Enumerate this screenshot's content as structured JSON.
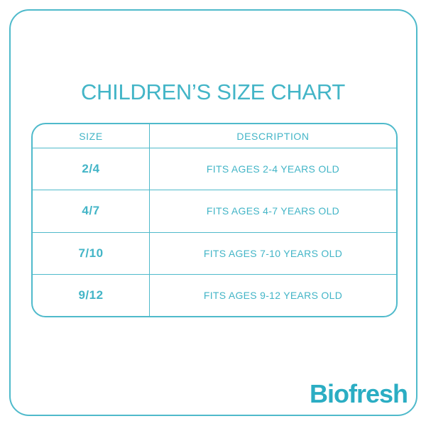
{
  "colors": {
    "accent": "#43b5c7",
    "line": "#4fbacb",
    "logo": "#2badc3"
  },
  "title": "CHILDREN’S SIZE CHART",
  "table": {
    "headers": {
      "size": "SIZE",
      "description": "DESCRIPTION"
    },
    "rows": [
      {
        "size": "2/4",
        "description": "FITS AGES 2-4 YEARS OLD"
      },
      {
        "size": "4/7",
        "description": "FITS AGES 4-7 YEARS OLD"
      },
      {
        "size": "7/10",
        "description": "FITS AGES 7-10 YEARS OLD"
      },
      {
        "size": "9/12",
        "description": "FITS AGES 9-12 YEARS OLD"
      }
    ]
  },
  "brand": {
    "name": "Biofresh"
  },
  "chart_data": {
    "type": "table",
    "title": "CHILDREN’S SIZE CHART",
    "columns": [
      "SIZE",
      "DESCRIPTION"
    ],
    "rows": [
      [
        "2/4",
        "FITS AGES 2-4 YEARS OLD"
      ],
      [
        "4/7",
        "FITS AGES 4-7 YEARS OLD"
      ],
      [
        "7/10",
        "FITS AGES 7-10 YEARS OLD"
      ],
      [
        "9/12",
        "FITS AGES 9-12 YEARS OLD"
      ]
    ]
  }
}
